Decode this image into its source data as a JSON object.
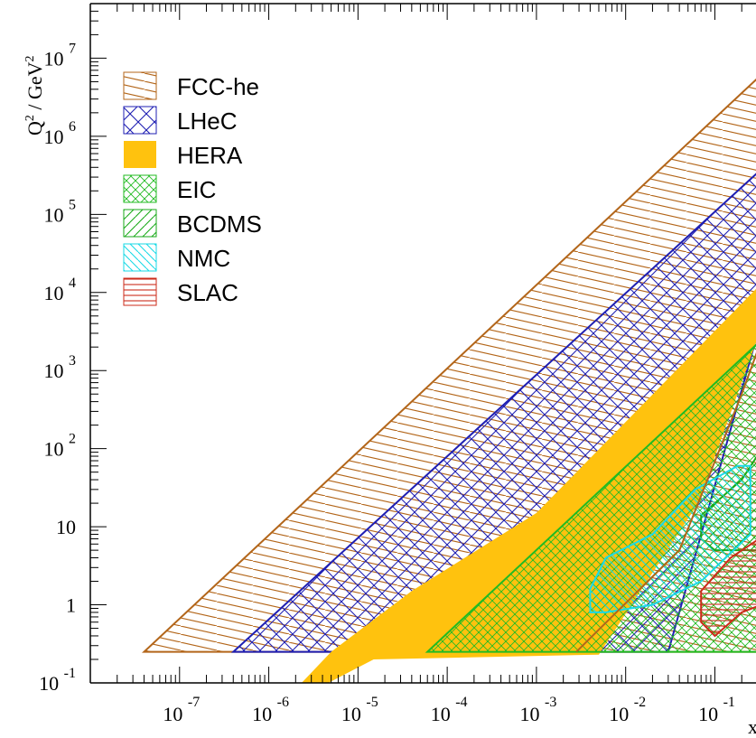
{
  "chart_data": {
    "type": "area",
    "title": "",
    "ylabel": {
      "base": "Q",
      "sup1": "2",
      "mid": " / GeV",
      "sup2": "2"
    },
    "xlabel": "x",
    "xscale": "log",
    "yscale": "log",
    "xlim": [
      1e-08,
      1
    ],
    "ylim": [
      0.1,
      50000000
    ],
    "x_ticks": [
      {
        "base": "10",
        "exp": "-7",
        "value": 1e-07
      },
      {
        "base": "10",
        "exp": "-6",
        "value": 1e-06
      },
      {
        "base": "10",
        "exp": "-5",
        "value": 1e-05
      },
      {
        "base": "10",
        "exp": "-4",
        "value": 0.0001
      },
      {
        "base": "10",
        "exp": "-3",
        "value": 0.001
      },
      {
        "base": "10",
        "exp": "-2",
        "value": 0.01
      },
      {
        "base": "10",
        "exp": "-1",
        "value": 0.1
      }
    ],
    "y_ticks": [
      {
        "base": "10",
        "exp": "-1",
        "value": 0.1
      },
      {
        "base": "1",
        "exp": "",
        "value": 1
      },
      {
        "base": "10",
        "exp": "",
        "value": 10
      },
      {
        "base": "10",
        "exp": "2",
        "value": 100
      },
      {
        "base": "10",
        "exp": "3",
        "value": 1000
      },
      {
        "base": "10",
        "exp": "4",
        "value": 10000
      },
      {
        "base": "10",
        "exp": "5",
        "value": 100000
      },
      {
        "base": "10",
        "exp": "6",
        "value": 1000000
      },
      {
        "base": "10",
        "exp": "7",
        "value": 10000000
      }
    ],
    "legend_position": "top-left",
    "series": [
      {
        "name": "FCC-he",
        "color": "#b3661a",
        "pattern": "hatch-shallow",
        "points": [
          [
            4e-08,
            0.25
          ],
          [
            1,
            0.25
          ],
          [
            1,
            20000000
          ],
          [
            4e-08,
            0.25
          ]
        ]
      },
      {
        "name": "LHeC",
        "color": "#1f1fb3",
        "pattern": "crosshatch",
        "points": [
          [
            4e-07,
            0.25
          ],
          [
            0.03,
            0.25
          ],
          [
            1,
            400000
          ],
          [
            1,
            1200000
          ],
          [
            4e-07,
            0.25
          ]
        ]
      },
      {
        "name": "HERA",
        "color": "#ffc20e",
        "pattern": "solid",
        "points": [
          [
            1.2e-06,
            0.045
          ],
          [
            1.5e-05,
            0.2
          ],
          [
            0.005,
            0.23
          ],
          [
            0.065,
            20
          ],
          [
            0.65,
            30000
          ],
          [
            0.52,
            22000
          ],
          [
            0.001,
            15
          ],
          [
            4e-05,
            1.5
          ],
          [
            5e-06,
            0.25
          ],
          [
            1.2e-06,
            0.045
          ]
        ]
      },
      {
        "name": "EIC",
        "color": "#22bb22",
        "pattern": "crosshatch-fine",
        "points": [
          [
            6e-05,
            0.25
          ],
          [
            0.55,
            0.25
          ],
          [
            1,
            1
          ],
          [
            1,
            8000
          ],
          [
            6e-05,
            0.25
          ]
        ]
      },
      {
        "name": "BCDMS",
        "color": "#1aaa1a",
        "pattern": "hatch-steep",
        "points": [
          [
            0.07,
            7
          ],
          [
            0.07,
            14
          ],
          [
            0.2,
            40
          ],
          [
            0.5,
            200
          ],
          [
            1,
            220
          ],
          [
            1,
            5
          ],
          [
            0.1,
            5
          ],
          [
            0.07,
            7
          ]
        ]
      },
      {
        "name": "NMC",
        "color": "#1ad9e6",
        "pattern": "hatch-back",
        "points": [
          [
            0.004,
            0.8
          ],
          [
            0.004,
            1.6
          ],
          [
            0.006,
            4
          ],
          [
            0.02,
            8
          ],
          [
            0.06,
            30
          ],
          [
            0.18,
            60
          ],
          [
            0.25,
            60
          ],
          [
            0.25,
            8
          ],
          [
            0.07,
            2
          ],
          [
            0.02,
            1
          ],
          [
            0.006,
            0.8
          ],
          [
            0.004,
            0.8
          ]
        ]
      },
      {
        "name": "SLAC",
        "color": "#cc2b1a",
        "pattern": "hatch-horizontal",
        "points": [
          [
            0.07,
            0.6
          ],
          [
            0.07,
            1.5
          ],
          [
            0.15,
            4
          ],
          [
            0.5,
            10
          ],
          [
            0.95,
            24
          ],
          [
            1,
            24
          ],
          [
            1,
            2
          ],
          [
            0.6,
            1.3
          ],
          [
            0.2,
            0.8
          ],
          [
            0.1,
            0.4
          ],
          [
            0.07,
            0.6
          ]
        ]
      }
    ],
    "boundary_line": {
      "color": "#b3661a",
      "points": [
        [
          0.0028,
          0.25
        ],
        [
          0.04,
          5
        ],
        [
          0.2,
          500
        ],
        [
          0.65,
          20000
        ]
      ]
    }
  }
}
